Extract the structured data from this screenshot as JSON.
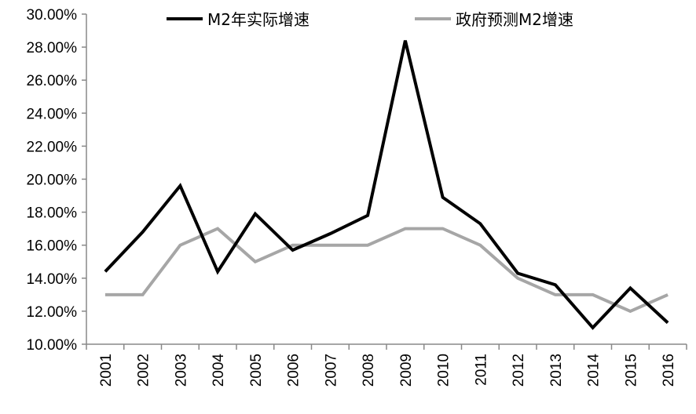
{
  "chart_data": {
    "type": "line",
    "title": "",
    "xlabel": "",
    "ylabel": "",
    "categories": [
      "2001",
      "2002",
      "2003",
      "2004",
      "2005",
      "2006",
      "2007",
      "2008",
      "2009",
      "2010",
      "2011",
      "2012",
      "2013",
      "2014",
      "2015",
      "2016"
    ],
    "ylim": [
      10,
      30
    ],
    "yticks": [
      10,
      12,
      14,
      16,
      18,
      20,
      22,
      24,
      26,
      28,
      30
    ],
    "ytick_labels": [
      "10.00%",
      "12.00%",
      "14.00%",
      "16.00%",
      "18.00%",
      "20.00%",
      "22.00%",
      "24.00%",
      "26.00%",
      "28.00%",
      "30.00%"
    ],
    "grid": false,
    "legend_position": "top",
    "series": [
      {
        "name": "M2年实际增速",
        "color": "#000000",
        "values": [
          14.4,
          16.8,
          19.6,
          14.4,
          17.9,
          15.7,
          16.7,
          17.8,
          28.4,
          18.9,
          17.3,
          14.3,
          13.6,
          11.0,
          13.4,
          11.3
        ]
      },
      {
        "name": "政府预测M2增速",
        "color": "#a6a6a6",
        "values": [
          13,
          13,
          16,
          17,
          15,
          16,
          16,
          16,
          17,
          17,
          16,
          14,
          13,
          13,
          12,
          13
        ]
      }
    ]
  }
}
